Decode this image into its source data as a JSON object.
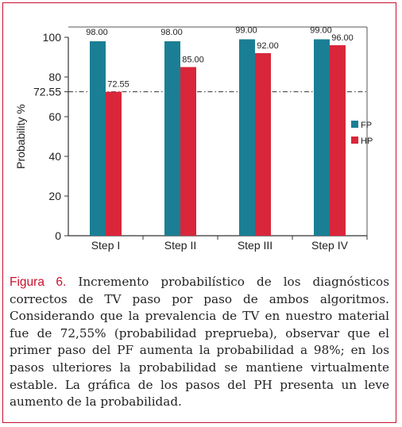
{
  "chart_data": {
    "type": "bar",
    "categories": [
      "Step I",
      "Step II",
      "Step III",
      "Step IV"
    ],
    "series": [
      {
        "name": "FP",
        "values": [
          98.0,
          98.0,
          99.0,
          99.0
        ],
        "labels": [
          "98.00",
          "98.00",
          "99.00",
          "99.00"
        ],
        "color": "#1a7f94"
      },
      {
        "name": "HP",
        "values": [
          72.55,
          85.0,
          92.0,
          96.0
        ],
        "labels": [
          "72.55",
          "85.00",
          "92.00",
          "96.00"
        ],
        "color": "#d9263b"
      }
    ],
    "title": "",
    "xlabel": "",
    "ylabel": "Probability %",
    "ylim": [
      0,
      100
    ],
    "yticks": [
      0,
      20,
      40,
      60,
      80,
      100
    ],
    "reference_line": {
      "value": 72.55,
      "label": "72.55",
      "style": "dash-dot"
    },
    "grid": false,
    "legend_position": "right"
  },
  "caption": {
    "label": "Figura 6.",
    "text": " Incremento probabilístico de los diagnósticos correctos de TV paso por paso de ambos algoritmos. Considerando que la prevalencia de TV en nuestro material fue de 72,55% (probabilidad preprueba), observar que el primer paso del PF aumenta la probabilidad a 98%; en los pasos ulteriores la probabilidad se mantiene virtualmente estable. La gráfica de los pasos del PH presenta un leve aumento de la probabilidad."
  }
}
